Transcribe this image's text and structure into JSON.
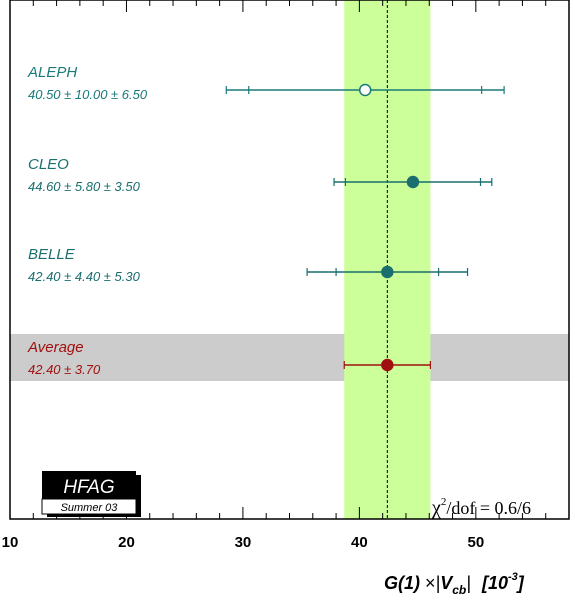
{
  "chart_data": {
    "type": "scatter",
    "title": "",
    "xlabel": "G(1) × |V_cb|  [10^-3]",
    "xlabel_parts": {
      "prefix": "G(1)",
      "times": "×",
      "v": "V",
      "sub": "cb",
      "bracket_open": "[10",
      "exp": "-3",
      "bracket_close": "]"
    },
    "xlim": [
      10,
      58
    ],
    "x_ticks": [
      10,
      20,
      30,
      40,
      50
    ],
    "x_tick_labels": [
      "10",
      "20",
      "30",
      "40",
      "50"
    ],
    "average_band": {
      "center": 42.4,
      "error": 3.7
    },
    "measurements": [
      {
        "name": "ALEPH",
        "value_text": "40.50 ± 10.00 ± 6.50",
        "value": 40.5,
        "stat": 10.0,
        "syst": 6.5,
        "marker": "open",
        "color": "#1a7a7a"
      },
      {
        "name": "CLEO",
        "value_text": "44.60 ± 5.80 ± 3.50",
        "value": 44.6,
        "stat": 5.8,
        "syst": 3.5,
        "marker": "filled",
        "color": "#1a6e6e"
      },
      {
        "name": "BELLE",
        "value_text": "42.40 ± 4.40 ± 5.30",
        "value": 42.4,
        "stat": 4.4,
        "syst": 5.3,
        "marker": "filled",
        "color": "#1a6e6e"
      },
      {
        "name": "Average",
        "value_text": "42.40 ± 3.70",
        "value": 42.4,
        "stat": 3.7,
        "syst": 0,
        "marker": "filled",
        "color": "#a01010"
      }
    ],
    "chi2": {
      "symbol": "χ",
      "sup": "2",
      "text": "/dof = 0.6/6"
    },
    "badge": {
      "main": "HFAG",
      "sub": "Summer 03"
    },
    "colors": {
      "band": "#ccff99",
      "average_row": "#cccccc",
      "measurement": "#1a6e6e",
      "average": "#a01010"
    }
  }
}
